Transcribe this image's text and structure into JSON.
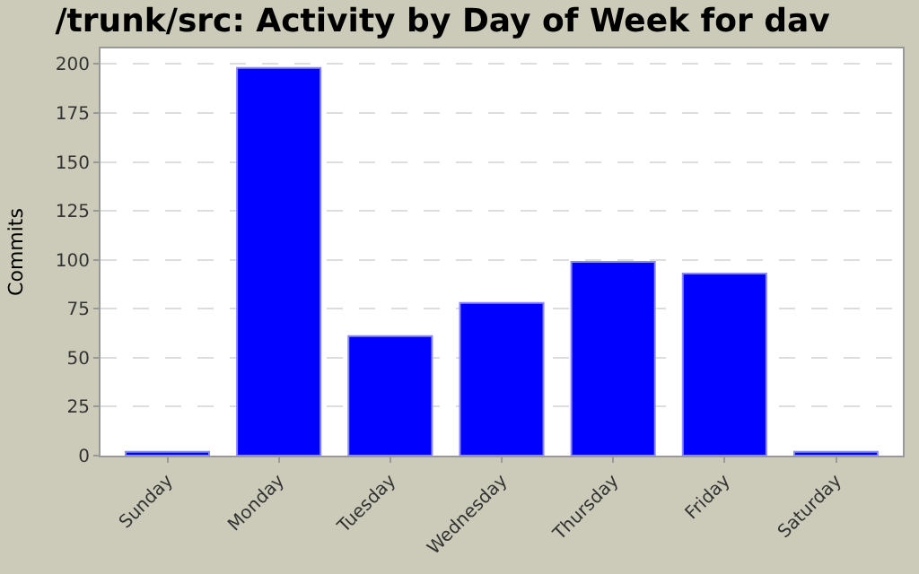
{
  "chart_data": {
    "type": "bar",
    "title": "/trunk/src: Activity by Day of Week for dav",
    "ylabel": "Commits",
    "categories": [
      "Sunday",
      "Monday",
      "Tuesday",
      "Wednesday",
      "Thursday",
      "Friday",
      "Saturday"
    ],
    "values": [
      2,
      198,
      61,
      78,
      99,
      93,
      2
    ],
    "color": "#0000ff",
    "ylim": [
      0,
      208
    ],
    "yticks": [
      0,
      25,
      50,
      75,
      100,
      125,
      150,
      175,
      200
    ],
    "grid": "y"
  }
}
